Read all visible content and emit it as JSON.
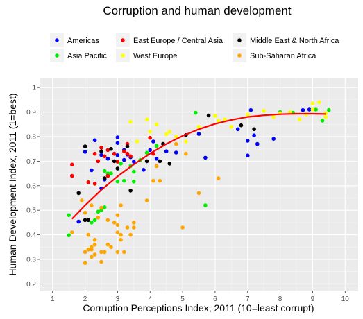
{
  "chart_data": {
    "type": "scatter",
    "title": "Corruption and human development",
    "xlabel": "Corruption Perceptions Index, 2011 (10=least corrupt)",
    "ylabel": "Human Development Index, 2011 (1=best)",
    "xlim": [
      0.6,
      10.4
    ],
    "ylim": [
      0.17,
      1.04
    ],
    "x_ticks": [
      1,
      2,
      3,
      4,
      5,
      6,
      7,
      8,
      9,
      10
    ],
    "y_ticks": [
      0.2,
      0.3,
      0.4,
      0.5,
      0.6,
      0.7,
      0.8,
      0.9,
      1
    ],
    "grid": true,
    "legend_position": "top",
    "colors": {
      "Americas": "#0000ff",
      "Asia Pacific": "#00ee00",
      "East Europe / Central Asia": "#ff0000",
      "West Europe": "#ffff00",
      "Middle East & North Africa": "#000000",
      "Sub-Saharan Africa": "#ffa500",
      "trend": "#ff0000",
      "panel": "#ebebeb"
    },
    "legend": [
      {
        "name": "Americas"
      },
      {
        "name": "East Europe / Central Asia"
      },
      {
        "name": "Middle East & North Africa"
      },
      {
        "name": "Asia Pacific"
      },
      {
        "name": "West Europe"
      },
      {
        "name": "Sub-Saharan Africa"
      }
    ],
    "series": [
      {
        "name": "Americas",
        "points": [
          [
            1.8,
            0.454
          ],
          [
            2.0,
            0.738
          ],
          [
            2.2,
            0.663
          ],
          [
            2.3,
            0.785
          ],
          [
            2.5,
            0.725
          ],
          [
            2.5,
            0.589
          ],
          [
            2.6,
            0.625
          ],
          [
            2.7,
            0.71
          ],
          [
            2.9,
            0.73
          ],
          [
            3.0,
            0.724
          ],
          [
            3.0,
            0.774
          ],
          [
            3.0,
            0.797
          ],
          [
            3.2,
            0.745
          ],
          [
            3.2,
            0.705
          ],
          [
            3.3,
            0.727
          ],
          [
            3.4,
            0.716
          ],
          [
            3.5,
            0.698
          ],
          [
            3.8,
            0.665
          ],
          [
            4.0,
            0.745
          ],
          [
            4.1,
            0.78
          ],
          [
            4.2,
            0.71
          ],
          [
            4.5,
            0.74
          ],
          [
            4.8,
            0.735
          ],
          [
            5.5,
            0.811
          ],
          [
            5.7,
            0.714
          ],
          [
            6.7,
            0.83
          ],
          [
            7.0,
            0.783
          ],
          [
            7.0,
            0.723
          ],
          [
            7.1,
            0.908
          ],
          [
            7.2,
            0.805
          ],
          [
            7.3,
            0.77
          ],
          [
            7.8,
            0.791
          ],
          [
            8.7,
            0.908
          ],
          [
            8.9,
            0.91
          ]
        ]
      },
      {
        "name": "Asia Pacific",
        "points": [
          [
            1.5,
            0.398
          ],
          [
            1.5,
            0.48
          ],
          [
            2.2,
            0.45
          ],
          [
            2.3,
            0.46
          ],
          [
            2.4,
            0.494
          ],
          [
            2.5,
            0.5
          ],
          [
            2.6,
            0.66
          ],
          [
            2.6,
            0.512
          ],
          [
            2.7,
            0.65
          ],
          [
            2.8,
            0.65
          ],
          [
            3.0,
            0.617
          ],
          [
            3.0,
            0.67
          ],
          [
            3.1,
            0.69
          ],
          [
            3.2,
            0.62
          ],
          [
            3.4,
            0.68
          ],
          [
            3.5,
            0.617
          ],
          [
            3.5,
            0.657
          ],
          [
            3.7,
            0.705
          ],
          [
            3.9,
            0.734
          ],
          [
            4.2,
            0.762
          ],
          [
            5.4,
            0.897
          ],
          [
            5.7,
            0.52
          ],
          [
            8.0,
            0.9
          ],
          [
            8.4,
            0.897
          ],
          [
            9.1,
            0.91
          ],
          [
            9.3,
            0.865
          ],
          [
            9.5,
            0.908
          ]
        ]
      },
      {
        "name": "East Europe / Central Asia",
        "points": [
          [
            1.6,
            0.686
          ],
          [
            1.6,
            0.64
          ],
          [
            2.1,
            0.614
          ],
          [
            2.3,
            0.608
          ],
          [
            2.3,
            0.73
          ],
          [
            2.4,
            0.7
          ],
          [
            2.5,
            0.755
          ],
          [
            2.6,
            0.72
          ],
          [
            2.7,
            0.745
          ],
          [
            2.7,
            0.64
          ],
          [
            2.9,
            0.73
          ],
          [
            3.0,
            0.698
          ],
          [
            3.2,
            0.74
          ],
          [
            3.3,
            0.73
          ],
          [
            3.3,
            0.77
          ],
          [
            3.4,
            0.72
          ],
          [
            4.0,
            0.795
          ],
          [
            4.1,
            0.73
          ],
          [
            4.4,
            0.77
          ]
        ]
      },
      {
        "name": "West Europe",
        "points": [
          [
            3.4,
            0.86
          ],
          [
            3.6,
            0.78
          ],
          [
            3.9,
            0.87
          ],
          [
            4.0,
            0.82
          ],
          [
            4.2,
            0.85
          ],
          [
            4.5,
            0.81
          ],
          [
            4.6,
            0.82
          ],
          [
            4.8,
            0.8
          ],
          [
            5.1,
            0.78
          ],
          [
            5.5,
            0.84
          ],
          [
            6.0,
            0.885
          ],
          [
            6.1,
            0.865
          ],
          [
            6.3,
            0.87
          ],
          [
            6.5,
            0.84
          ],
          [
            7.0,
            0.89
          ],
          [
            7.5,
            0.905
          ],
          [
            7.8,
            0.88
          ],
          [
            8.0,
            0.895
          ],
          [
            8.3,
            0.9
          ],
          [
            8.6,
            0.87
          ],
          [
            8.8,
            0.89
          ],
          [
            9.0,
            0.91
          ],
          [
            9.0,
            0.935
          ],
          [
            9.2,
            0.94
          ],
          [
            9.4,
            0.895
          ],
          [
            9.4,
            0.88
          ]
        ]
      },
      {
        "name": "Middle East & North Africa",
        "points": [
          [
            1.8,
            0.57
          ],
          [
            2.0,
            0.46
          ],
          [
            2.0,
            0.76
          ],
          [
            2.1,
            0.46
          ],
          [
            2.5,
            0.74
          ],
          [
            2.6,
            0.63
          ],
          [
            2.8,
            0.75
          ],
          [
            2.9,
            0.7
          ],
          [
            3.0,
            0.67
          ],
          [
            3.3,
            0.76
          ],
          [
            3.4,
            0.58
          ],
          [
            3.9,
            0.7
          ],
          [
            4.3,
            0.7
          ],
          [
            4.4,
            0.77
          ],
          [
            4.6,
            0.69
          ],
          [
            5.1,
            0.806
          ],
          [
            5.8,
            0.886
          ],
          [
            6.8,
            0.846
          ],
          [
            7.2,
            0.83
          ]
        ]
      },
      {
        "name": "Sub-Saharan Africa",
        "points": [
          [
            1.6,
            0.41
          ],
          [
            1.9,
            0.54
          ],
          [
            2.0,
            0.285
          ],
          [
            2.0,
            0.33
          ],
          [
            2.0,
            0.49
          ],
          [
            2.1,
            0.34
          ],
          [
            2.1,
            0.4
          ],
          [
            2.2,
            0.35
          ],
          [
            2.2,
            0.52
          ],
          [
            2.2,
            0.31
          ],
          [
            2.2,
            0.34
          ],
          [
            2.3,
            0.32
          ],
          [
            2.3,
            0.36
          ],
          [
            2.3,
            0.38
          ],
          [
            2.4,
            0.47
          ],
          [
            2.5,
            0.29
          ],
          [
            2.5,
            0.33
          ],
          [
            2.5,
            0.51
          ],
          [
            2.6,
            0.33
          ],
          [
            2.7,
            0.36
          ],
          [
            2.7,
            0.46
          ],
          [
            2.8,
            0.35
          ],
          [
            2.9,
            0.45
          ],
          [
            3.0,
            0.33
          ],
          [
            3.0,
            0.41
          ],
          [
            3.0,
            0.44
          ],
          [
            3.0,
            0.48
          ],
          [
            3.1,
            0.4
          ],
          [
            3.1,
            0.38
          ],
          [
            3.1,
            0.52
          ],
          [
            3.2,
            0.33
          ],
          [
            3.3,
            0.43
          ],
          [
            3.4,
            0.4
          ],
          [
            3.5,
            0.45
          ],
          [
            3.5,
            0.43
          ],
          [
            3.9,
            0.54
          ],
          [
            4.1,
            0.62
          ],
          [
            4.2,
            0.68
          ],
          [
            4.3,
            0.62
          ],
          [
            4.8,
            0.77
          ],
          [
            5.0,
            0.43
          ],
          [
            5.1,
            0.73
          ],
          [
            5.5,
            0.57
          ],
          [
            6.1,
            0.63
          ]
        ]
      }
    ],
    "trend_line": {
      "name": "trend",
      "points": [
        [
          1.6,
          0.465
        ],
        [
          2.0,
          0.52
        ],
        [
          2.5,
          0.583
        ],
        [
          3.0,
          0.638
        ],
        [
          3.5,
          0.687
        ],
        [
          4.0,
          0.731
        ],
        [
          4.5,
          0.77
        ],
        [
          5.0,
          0.803
        ],
        [
          5.5,
          0.83
        ],
        [
          6.0,
          0.852
        ],
        [
          6.5,
          0.868
        ],
        [
          7.0,
          0.88
        ],
        [
          7.5,
          0.887
        ],
        [
          8.0,
          0.891
        ],
        [
          8.5,
          0.893
        ],
        [
          9.0,
          0.893
        ],
        [
          9.4,
          0.892
        ]
      ]
    }
  }
}
